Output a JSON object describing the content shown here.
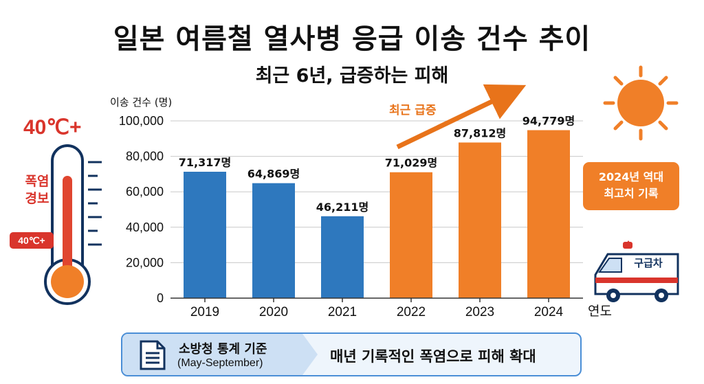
{
  "title": "일본 여름철 열사병 응급 이송 건수 추이",
  "subtitle": "최근 6년, 급증하는 피해",
  "chart_data": {
    "type": "bar",
    "categories": [
      "2019",
      "2020",
      "2021",
      "2022",
      "2023",
      "2024"
    ],
    "values": [
      71317,
      64869,
      46211,
      71029,
      87812,
      94779
    ],
    "data_labels": [
      "71,317명",
      "64,869명",
      "46,211명",
      "71,029명",
      "87,812명",
      "94,779명"
    ],
    "bar_colors": [
      "#2e78be",
      "#2e78be",
      "#2e78be",
      "#f07f28",
      "#f07f28",
      "#f07f28"
    ],
    "ylabel": "이송 건수 (명)",
    "xlabel": "연도",
    "ylim": [
      0,
      100000
    ],
    "yticks": [
      0,
      20000,
      40000,
      60000,
      80000,
      100000
    ],
    "ytick_labels": [
      "0",
      "20,000",
      "40,000",
      "60,000",
      "80,000",
      "100,000"
    ],
    "grid": true,
    "annotations": {
      "trend_label": "최근 급증",
      "record_badge": [
        "2024년 역대",
        "최고치 기록"
      ]
    }
  },
  "decor": {
    "temperature": "40℃+",
    "temp_tag": "40℃+",
    "heat_warning": [
      "폭염",
      "경보"
    ],
    "ambulance_label": "구급차",
    "icons": [
      "thermometer-icon",
      "sun-icon",
      "ambulance-icon",
      "document-icon"
    ]
  },
  "footer": {
    "source": "소방청 통계 기준",
    "period": "(May-September)",
    "message": "매년 기록적인 폭염으로 피해 확대"
  },
  "colors": {
    "blue": "#2e78be",
    "orange": "#f07f28",
    "red": "#d9352c",
    "navy": "#12325e"
  }
}
